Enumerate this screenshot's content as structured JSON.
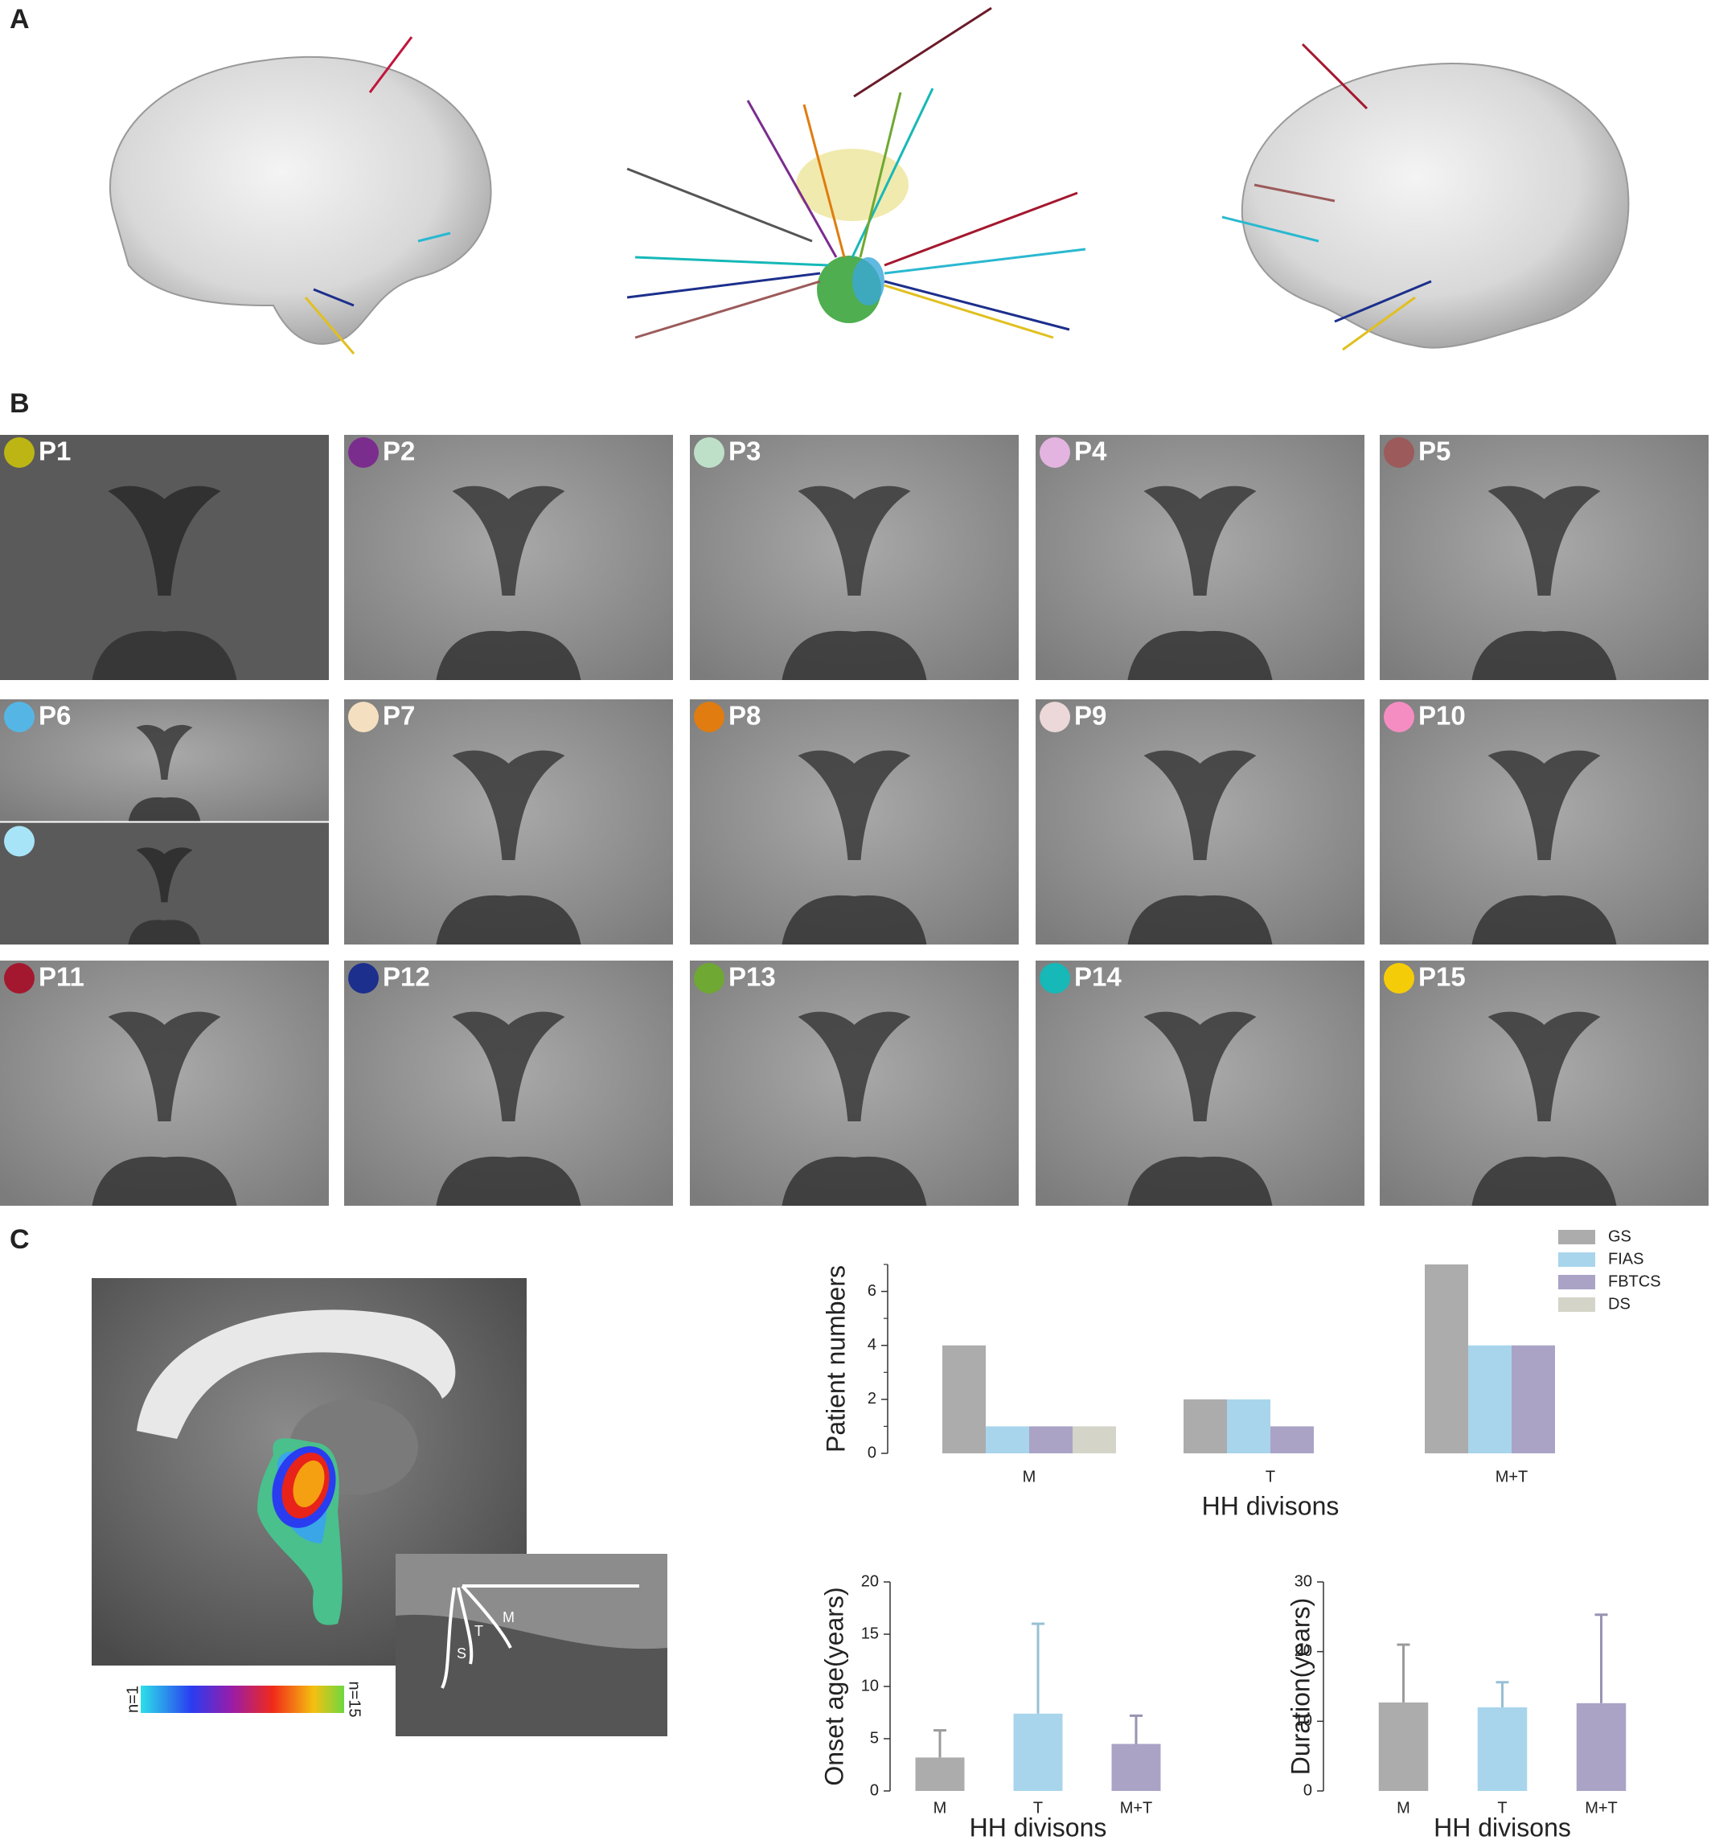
{
  "panels": [
    "A",
    "B",
    "C"
  ],
  "patients": [
    {
      "label": "P1",
      "color": "#bdb514"
    },
    {
      "label": "P2",
      "color": "#7b2d8e"
    },
    {
      "label": "P3",
      "color": "#bfe0c8"
    },
    {
      "label": "P4",
      "color": "#e3b4e0"
    },
    {
      "label": "P5",
      "color": "#9c5a5a"
    },
    {
      "label": "P6",
      "color": "#55b6e6",
      "second_color": "#a8e4f7"
    },
    {
      "label": "P7",
      "color": "#f4dfc0"
    },
    {
      "label": "P8",
      "color": "#e07c10"
    },
    {
      "label": "P9",
      "color": "#ecd8d8"
    },
    {
      "label": "P10",
      "color": "#f58dc2"
    },
    {
      "label": "P11",
      "color": "#a3182e"
    },
    {
      "label": "P12",
      "color": "#1c2f8c"
    },
    {
      "label": "P13",
      "color": "#6fa832"
    },
    {
      "label": "P14",
      "color": "#16b8b8"
    },
    {
      "label": "P15",
      "color": "#f5cc08"
    }
  ],
  "colorbar": {
    "min_label": "n=1",
    "max_label": "n=15"
  },
  "inset_labels": [
    "S",
    "T",
    "M"
  ],
  "chart_data": [
    {
      "type": "bar",
      "y_label": "Patient numbers",
      "x_label": "HH divisons",
      "categories": [
        "M",
        "T",
        "M+T"
      ],
      "series": [
        {
          "name": "GS",
          "color": "#acacac",
          "values": [
            4,
            2,
            7
          ]
        },
        {
          "name": "FIAS",
          "color": "#a8d5ec",
          "values": [
            1,
            2,
            4
          ]
        },
        {
          "name": "FBTCS",
          "color": "#aaa3c6",
          "values": [
            1,
            1,
            4
          ]
        },
        {
          "name": "DS",
          "color": "#d4d4c8",
          "values": [
            1,
            null,
            null
          ]
        }
      ],
      "ylim": [
        0,
        7
      ],
      "yticks": [
        0,
        2,
        4,
        6
      ],
      "minor_yticks": [
        1,
        3,
        5,
        7
      ],
      "legend": "upper right"
    },
    {
      "type": "bar",
      "y_label": "Onset age(years)",
      "x_label": "HH divisons",
      "categories": [
        "M",
        "T",
        "M+T"
      ],
      "values": [
        3.2,
        7.4,
        4.5
      ],
      "errors": [
        2.6,
        8.6,
        2.7
      ],
      "colors": [
        "#acacac",
        "#a8d5ec",
        "#aaa3c6"
      ],
      "ylim": [
        0,
        20
      ],
      "yticks": [
        0,
        5,
        10,
        15,
        20
      ]
    },
    {
      "type": "bar",
      "y_label": "Duration(years)",
      "x_label": "HH divisons",
      "categories": [
        "M",
        "T",
        "M+T"
      ],
      "values": [
        12.7,
        12,
        12.6
      ],
      "errors": [
        8.3,
        3.6,
        12.7
      ],
      "colors": [
        "#acacac",
        "#a8d5ec",
        "#aaa3c6"
      ],
      "ylim": [
        0,
        30
      ],
      "yticks": [
        0,
        10,
        20,
        30
      ]
    }
  ]
}
